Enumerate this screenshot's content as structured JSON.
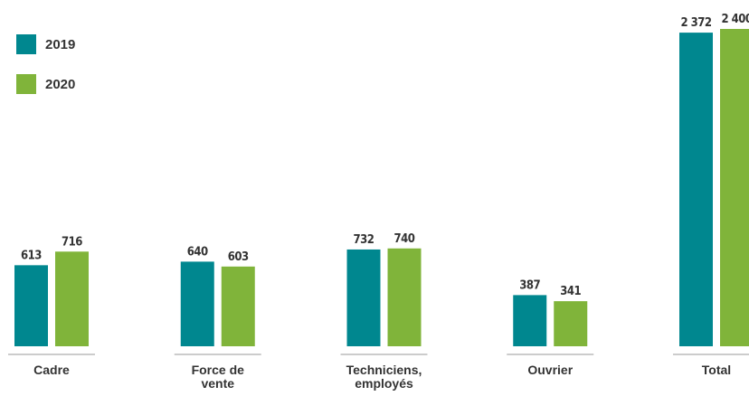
{
  "chart_data": {
    "type": "bar",
    "categories": [
      "Cadre",
      "Force de vente",
      "Techniciens, employés",
      "Ouvrier",
      "Total"
    ],
    "series": [
      {
        "name": "2019",
        "color": "#00878f",
        "values": [
          613,
          640,
          732,
          387,
          2372
        ],
        "value_labels": [
          "613",
          "640",
          "732",
          "387",
          "2 372"
        ]
      },
      {
        "name": "2020",
        "color": "#80b43a",
        "values": [
          716,
          603,
          740,
          341,
          2400
        ],
        "value_labels": [
          "716",
          "603",
          "740",
          "341",
          "2 400"
        ]
      }
    ],
    "legend": "top-left"
  }
}
